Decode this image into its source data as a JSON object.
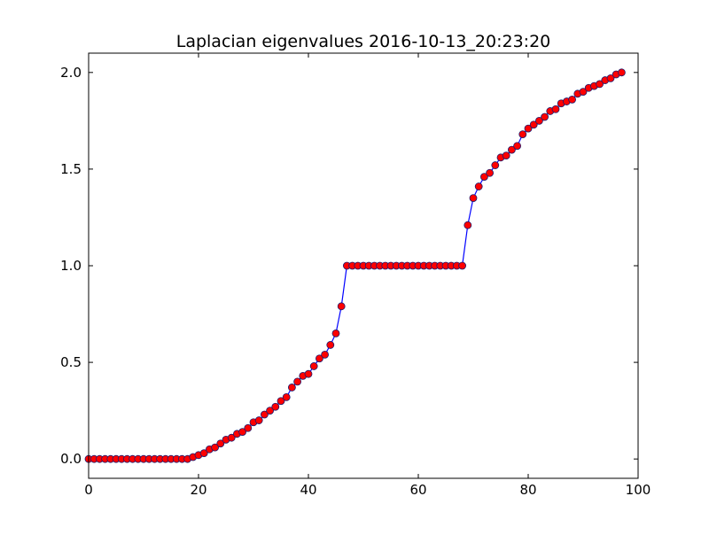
{
  "chart_data": {
    "type": "line",
    "title": "Laplacian eigenvalues 2016-10-13_20:23:20",
    "xlabel": "",
    "ylabel": "",
    "xlim": [
      0,
      100
    ],
    "ylim": [
      -0.1,
      2.1
    ],
    "xticks": [
      0,
      20,
      40,
      60,
      80,
      100
    ],
    "xtick_labels": [
      "0",
      "20",
      "40",
      "60",
      "80",
      "100"
    ],
    "yticks": [
      0.0,
      0.5,
      1.0,
      1.5,
      2.0
    ],
    "ytick_labels": [
      "0.0",
      "0.5",
      "1.0",
      "1.5",
      "2.0"
    ],
    "grid": false,
    "legend": "none",
    "series": [
      {
        "line_color": "#0000ff",
        "marker_color": "#ff0000",
        "marker": "circle",
        "x": [
          0,
          1,
          2,
          3,
          4,
          5,
          6,
          7,
          8,
          9,
          10,
          11,
          12,
          13,
          14,
          15,
          16,
          17,
          18,
          19,
          20,
          21,
          22,
          23,
          24,
          25,
          26,
          27,
          28,
          29,
          30,
          31,
          32,
          33,
          34,
          35,
          36,
          37,
          38,
          39,
          40,
          41,
          42,
          43,
          44,
          45,
          46,
          47,
          48,
          49,
          50,
          51,
          52,
          53,
          54,
          55,
          56,
          57,
          58,
          59,
          60,
          61,
          62,
          63,
          64,
          65,
          66,
          67,
          68,
          69,
          70,
          71,
          72,
          73,
          74,
          75,
          76,
          77,
          78,
          79,
          80,
          81,
          82,
          83,
          84,
          85,
          86,
          87,
          88,
          89,
          90,
          91,
          92,
          93,
          94,
          95,
          96,
          97
        ],
        "y": [
          0.0,
          0.0,
          0.0,
          0.0,
          0.0,
          0.0,
          0.0,
          0.0,
          0.0,
          0.0,
          0.0,
          0.0,
          0.0,
          0.0,
          0.0,
          0.0,
          0.0,
          0.0,
          0.0,
          0.01,
          0.02,
          0.03,
          0.05,
          0.06,
          0.08,
          0.1,
          0.11,
          0.13,
          0.14,
          0.16,
          0.19,
          0.2,
          0.23,
          0.25,
          0.27,
          0.3,
          0.32,
          0.37,
          0.4,
          0.43,
          0.44,
          0.48,
          0.52,
          0.54,
          0.59,
          0.65,
          0.79,
          1.0,
          1.0,
          1.0,
          1.0,
          1.0,
          1.0,
          1.0,
          1.0,
          1.0,
          1.0,
          1.0,
          1.0,
          1.0,
          1.0,
          1.0,
          1.0,
          1.0,
          1.0,
          1.0,
          1.0,
          1.0,
          1.0,
          1.21,
          1.35,
          1.41,
          1.46,
          1.48,
          1.52,
          1.56,
          1.57,
          1.6,
          1.62,
          1.68,
          1.71,
          1.73,
          1.75,
          1.77,
          1.8,
          1.81,
          1.84,
          1.85,
          1.86,
          1.89,
          1.9,
          1.92,
          1.93,
          1.94,
          1.96,
          1.97,
          1.99,
          2.0
        ]
      }
    ]
  }
}
